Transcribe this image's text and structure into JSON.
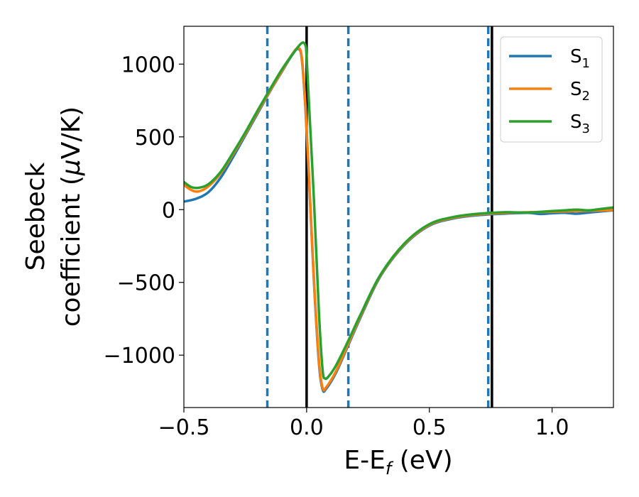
{
  "chart_data": {
    "type": "line",
    "xlabel": "E-E",
    "xlabel_sub": "f",
    "xlabel_unit": " (eV)",
    "ylabel_line1": "Seebeck",
    "ylabel_line2": "coefficient  (",
    "ylabel_mu": "μ",
    "ylabel_unit": "V/K)",
    "xlim": [
      -0.5,
      1.25
    ],
    "ylim": [
      -1360,
      1260
    ],
    "xticks": [
      -0.5,
      0.0,
      0.5,
      1.0
    ],
    "xtick_labels": [
      "−0.5",
      "0.0",
      "0.5",
      "1.0"
    ],
    "yticks": [
      -1000,
      -500,
      0,
      500,
      1000
    ],
    "ytick_labels": [
      "−1000",
      "−500",
      "0",
      "500",
      "1000"
    ],
    "grid": false,
    "legend_position": "top-right",
    "series": [
      {
        "name": "S",
        "sub": "1",
        "color": "#1f77b4",
        "points": [
          [
            -0.5,
            55
          ],
          [
            -0.45,
            75
          ],
          [
            -0.4,
            120
          ],
          [
            -0.35,
            220
          ],
          [
            -0.3,
            360
          ],
          [
            -0.25,
            510
          ],
          [
            -0.2,
            660
          ],
          [
            -0.15,
            810
          ],
          [
            -0.1,
            950
          ],
          [
            -0.06,
            1060
          ],
          [
            -0.035,
            1105
          ],
          [
            -0.02,
            1040
          ],
          [
            -0.005,
            700
          ],
          [
            0.01,
            200
          ],
          [
            0.03,
            -500
          ],
          [
            0.05,
            -1050
          ],
          [
            0.065,
            -1235
          ],
          [
            0.08,
            -1230
          ],
          [
            0.12,
            -1120
          ],
          [
            0.17,
            -930
          ],
          [
            0.22,
            -740
          ],
          [
            0.3,
            -460
          ],
          [
            0.4,
            -240
          ],
          [
            0.5,
            -110
          ],
          [
            0.6,
            -60
          ],
          [
            0.7,
            -38
          ],
          [
            0.8,
            -28
          ],
          [
            0.9,
            -22
          ],
          [
            0.95,
            -30
          ],
          [
            1.0,
            -25
          ],
          [
            1.05,
            -22
          ],
          [
            1.1,
            -28
          ],
          [
            1.15,
            -20
          ],
          [
            1.2,
            -12
          ],
          [
            1.25,
            -5
          ]
        ]
      },
      {
        "name": "S",
        "sub": "2",
        "color": "#ff7f0e",
        "points": [
          [
            -0.5,
            170
          ],
          [
            -0.47,
            135
          ],
          [
            -0.44,
            125
          ],
          [
            -0.4,
            160
          ],
          [
            -0.35,
            250
          ],
          [
            -0.3,
            380
          ],
          [
            -0.25,
            520
          ],
          [
            -0.2,
            670
          ],
          [
            -0.15,
            815
          ],
          [
            -0.1,
            955
          ],
          [
            -0.06,
            1065
          ],
          [
            -0.035,
            1110
          ],
          [
            -0.02,
            1050
          ],
          [
            -0.005,
            720
          ],
          [
            0.01,
            220
          ],
          [
            0.03,
            -480
          ],
          [
            0.05,
            -1030
          ],
          [
            0.065,
            -1225
          ],
          [
            0.08,
            -1220
          ],
          [
            0.12,
            -1110
          ],
          [
            0.17,
            -920
          ],
          [
            0.22,
            -730
          ],
          [
            0.3,
            -455
          ],
          [
            0.4,
            -235
          ],
          [
            0.5,
            -105
          ],
          [
            0.6,
            -55
          ],
          [
            0.7,
            -33
          ],
          [
            0.8,
            -23
          ],
          [
            0.9,
            -18
          ],
          [
            1.0,
            -15
          ],
          [
            1.05,
            -12
          ],
          [
            1.1,
            -10
          ],
          [
            1.15,
            -8
          ],
          [
            1.2,
            -6
          ],
          [
            1.25,
            -3
          ]
        ]
      },
      {
        "name": "S",
        "sub": "3",
        "color": "#2ca02c",
        "points": [
          [
            -0.5,
            190
          ],
          [
            -0.47,
            155
          ],
          [
            -0.44,
            150
          ],
          [
            -0.4,
            175
          ],
          [
            -0.35,
            260
          ],
          [
            -0.3,
            390
          ],
          [
            -0.25,
            530
          ],
          [
            -0.2,
            680
          ],
          [
            -0.15,
            825
          ],
          [
            -0.1,
            965
          ],
          [
            -0.05,
            1085
          ],
          [
            -0.02,
            1145
          ],
          [
            -0.005,
            1130
          ],
          [
            0.0,
            1050
          ],
          [
            0.01,
            720
          ],
          [
            0.03,
            60
          ],
          [
            0.05,
            -700
          ],
          [
            0.065,
            -1100
          ],
          [
            0.075,
            -1160
          ],
          [
            0.09,
            -1145
          ],
          [
            0.12,
            -1070
          ],
          [
            0.17,
            -900
          ],
          [
            0.22,
            -720
          ],
          [
            0.3,
            -450
          ],
          [
            0.4,
            -230
          ],
          [
            0.5,
            -100
          ],
          [
            0.6,
            -50
          ],
          [
            0.7,
            -28
          ],
          [
            0.8,
            -18
          ],
          [
            0.9,
            -20
          ],
          [
            1.0,
            -10
          ],
          [
            1.05,
            -5
          ],
          [
            1.1,
            0
          ],
          [
            1.15,
            -5
          ],
          [
            1.2,
            5
          ],
          [
            1.25,
            15
          ]
        ]
      }
    ],
    "dashed_vlines": {
      "color": "#1f77b4",
      "x": [
        -0.16,
        0.17,
        0.74
      ]
    },
    "solid_vlines": {
      "color": "#000000",
      "x": [
        0.0,
        0.755
      ]
    }
  }
}
